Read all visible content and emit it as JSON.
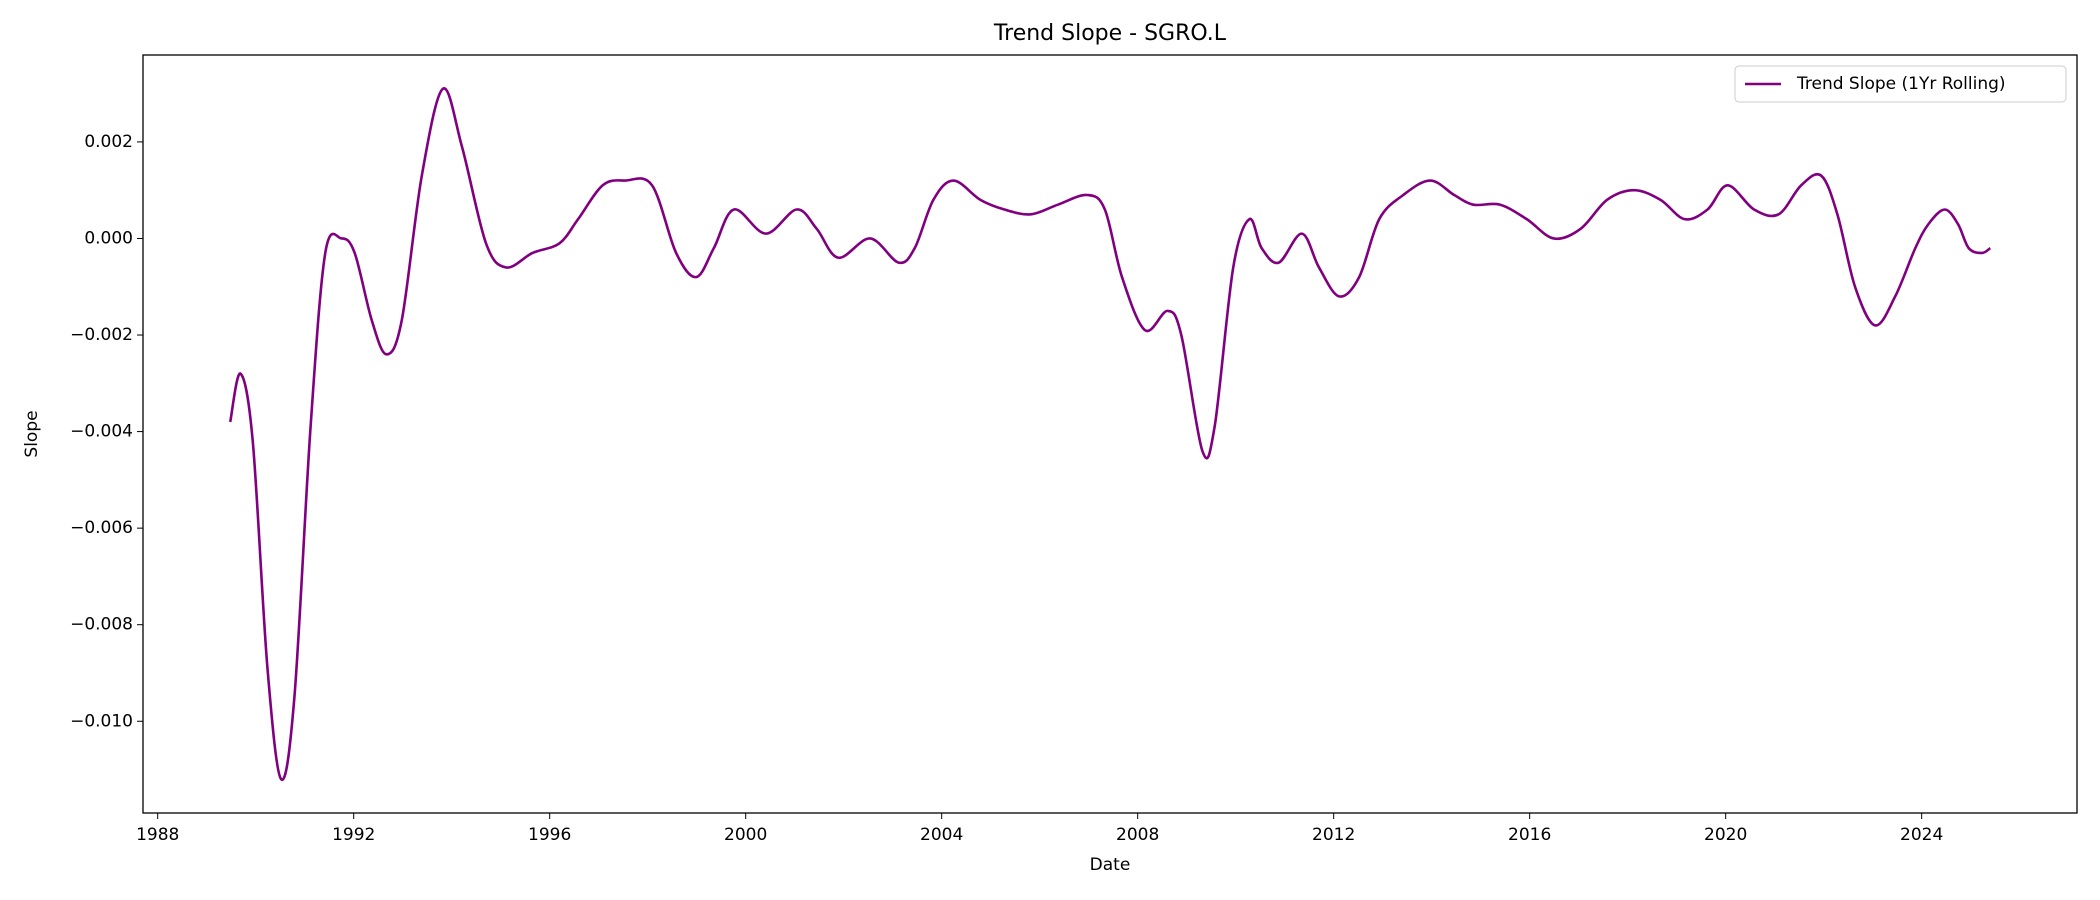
{
  "chart_data": {
    "type": "line",
    "title": "Trend Slope - SGRO.L",
    "xlabel": "Date",
    "ylabel": "Slope",
    "xlim": [
      1987.7,
      2027.17
    ],
    "xticks": [
      1988,
      1992,
      1996,
      2000,
      2004,
      2008,
      2012,
      2016,
      2020,
      2024
    ],
    "ylim": [
      -0.0119,
      0.0038
    ],
    "yticks": [
      {
        "value": -0.01,
        "label": "−0.010"
      },
      {
        "value": -0.008,
        "label": "−0.008"
      },
      {
        "value": -0.006,
        "label": "−0.006"
      },
      {
        "value": -0.004,
        "label": "−0.004"
      },
      {
        "value": -0.002,
        "label": "−0.002"
      },
      {
        "value": 0,
        "label": "0.000"
      },
      {
        "value": 0.002,
        "label": "0.002"
      }
    ],
    "grid": false,
    "legend": "upper right",
    "series": [
      {
        "name": "Trend Slope (1Yr Rolling)",
        "color": "#800080",
        "x": [
          1989.48,
          1989.69,
          1989.94,
          1990.24,
          1990.52,
          1990.79,
          1991.12,
          1991.42,
          1991.75,
          1992.02,
          1992.37,
          1992.67,
          1992.98,
          1993.39,
          1993.82,
          1994.21,
          1994.7,
          1995.11,
          1995.65,
          1996.2,
          1996.58,
          1997.08,
          1997.54,
          1998.09,
          1998.58,
          1998.99,
          1999.35,
          1999.76,
          2000.41,
          2001.04,
          2001.45,
          2001.89,
          2002.54,
          2003.12,
          2003.45,
          2003.83,
          2004.24,
          2004.79,
          2005.28,
          2005.82,
          2006.37,
          2006.97,
          2007.33,
          2007.68,
          2008.15,
          2008.61,
          2008.89,
          2009.32,
          2009.57,
          2009.95,
          2010.28,
          2010.53,
          2010.88,
          2011.35,
          2011.7,
          2012.11,
          2012.52,
          2012.93,
          2013.42,
          2013.97,
          2014.46,
          2014.85,
          2015.39,
          2015.94,
          2016.49,
          2017.04,
          2017.58,
          2018.13,
          2018.67,
          2019.16,
          2019.63,
          2020.04,
          2020.58,
          2021.08,
          2021.54,
          2021.95,
          2022.28,
          2022.64,
          2023.05,
          2023.46,
          2023.87,
          2024.14,
          2024.47,
          2024.74,
          2024.96,
          2025.23,
          2025.4
        ],
        "values": [
          -0.0038,
          -0.0028,
          -0.0042,
          -0.0089,
          -0.0112,
          -0.0095,
          -0.0039,
          -0.0003,
          0.0,
          -0.0003,
          -0.0017,
          -0.0024,
          -0.0017,
          0.0013,
          0.0031,
          0.0019,
          -0.0001,
          -0.0006,
          -0.0003,
          -0.0001,
          0.0004,
          0.0011,
          0.0012,
          0.0011,
          -0.0003,
          -0.0008,
          -0.0002,
          0.0006,
          0.0001,
          0.0006,
          0.0002,
          -0.0004,
          0.0,
          -0.0005,
          -0.0002,
          0.0008,
          0.0012,
          0.0008,
          0.0006,
          0.0005,
          0.0007,
          0.0009,
          0.0006,
          -0.0008,
          -0.0019,
          -0.0015,
          -0.002,
          -0.0044,
          -0.0039,
          -0.0006,
          0.0004,
          -0.0002,
          -0.0005,
          0.0001,
          -0.0006,
          -0.0012,
          -0.0008,
          0.0004,
          0.0009,
          0.0012,
          0.0009,
          0.0007,
          0.0007,
          0.0004,
          0.0,
          0.0002,
          0.0008,
          0.001,
          0.0008,
          0.0004,
          0.0006,
          0.0011,
          0.0006,
          0.0005,
          0.0011,
          0.0013,
          0.0005,
          -0.001,
          -0.0018,
          -0.0012,
          -0.0002,
          0.0003,
          0.0006,
          0.0003,
          -0.0002,
          -0.0003,
          -0.0002
        ]
      }
    ]
  }
}
